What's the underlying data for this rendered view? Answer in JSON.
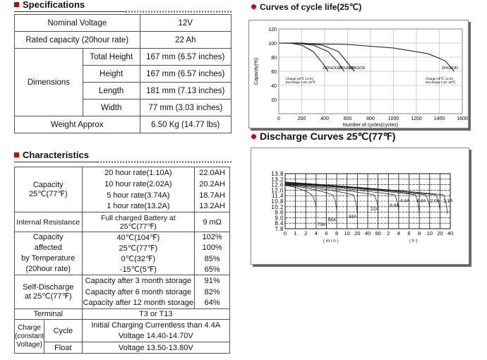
{
  "specs_header": "Specifications",
  "specs": {
    "nominal_voltage_label": "Nominal Voltage",
    "nominal_voltage_value": "12V",
    "rated_capacity_label": "Rated capacity (20hour rate)",
    "rated_capacity_value": "22 Ah",
    "dimensions_label": "Dimensions",
    "dimensions": [
      {
        "label": "Total Height",
        "value": "167 mm (6.57 inches)"
      },
      {
        "label": "Height",
        "value": "167 mm (6.57 inches)"
      },
      {
        "label": "Length",
        "value": "181 mm (7.13 inches)"
      },
      {
        "label": "Width",
        "value": "77 mm (3.03 inches)"
      }
    ],
    "weight_label": "Weight Approx",
    "weight_value": "6.50 Kg (14.77 lbs)"
  },
  "char_header": "Characteristics",
  "characteristics": {
    "capacity_label": [
      "Capacity",
      "25℃(77℉)"
    ],
    "capacity_rows": [
      {
        "rate": "20 hour rate(1.10A)",
        "value": "22.0AH"
      },
      {
        "rate": "10 hour rate(2.02A)",
        "value": "20.2AH"
      },
      {
        "rate": "5 hour rate(3.74A)",
        "value": "18.7AH"
      },
      {
        "rate": "1 hour rate(13.2A)",
        "value": "13.2AH"
      }
    ],
    "internal_resistance_label": "Internal Resistance",
    "internal_resistance_cond": "Full charged Battery at 25℃(77℉)",
    "internal_resistance_value": "9 mΩ",
    "temp_label": [
      "Capacity",
      "affected",
      "by Temperature",
      "(20hour rate)"
    ],
    "temp_rows": [
      {
        "temp": "40℃(104℉)",
        "value": "102%"
      },
      {
        "temp": "25℃(77℉)",
        "value": "100%"
      },
      {
        "temp": "0℃(32℉)",
        "value": "85%"
      },
      {
        "temp": "-15℃(5℉)",
        "value": "65%"
      }
    ],
    "self_discharge_label": [
      "Self-Discharge",
      "at 25℃(77℉)"
    ],
    "self_discharge_rows": [
      {
        "cond": "Capacity after 3 month storage",
        "value": "91%"
      },
      {
        "cond": "Capacity after 6 month storage",
        "value": "82%"
      },
      {
        "cond": "Capacity after 12 month storage",
        "value": "64%"
      }
    ],
    "terminal_label": "Terminal",
    "terminal_value": "T3 or T13",
    "charge_label": [
      "Charge",
      "(constant",
      "Voltage)"
    ],
    "cycle_label": "Cycle",
    "cycle_lines": [
      "Initial Charging Currentless than 4.4A",
      "Voltage 14.40-14.70V"
    ],
    "float_label": "Float",
    "float_value": "Voltage 13.50-13.80V"
  },
  "cycle_header": "Curves of cycle life(25℃)",
  "discharge_header": "Discharge Curves 25℃(77℉)",
  "chart_data": [
    {
      "type": "line",
      "title": "Curves of cycle life(25℃)",
      "xlabel": "Number of cycles(cycles)",
      "ylabel": "Capacity(%)",
      "xlim": [
        0,
        1600
      ],
      "ylim": [
        0,
        120
      ],
      "x_ticks": [
        "0",
        "200",
        "400",
        "600",
        "800",
        "1000",
        "1200",
        "1400",
        "1600"
      ],
      "y_ticks": [
        "20",
        "40",
        "60",
        "80",
        "100",
        "120"
      ],
      "series": [
        {
          "name": "100%DOD",
          "x": [
            0,
            100,
            200,
            300,
            380,
            430
          ],
          "y": [
            100,
            100,
            97,
            88,
            72,
            60
          ]
        },
        {
          "name": "70%DOD",
          "x": [
            0,
            150,
            300,
            430,
            520,
            570
          ],
          "y": [
            100,
            100,
            97,
            88,
            72,
            60
          ]
        },
        {
          "name": "50%DOD",
          "x": [
            0,
            200,
            380,
            520,
            600,
            660
          ],
          "y": [
            100,
            100,
            97,
            88,
            72,
            60
          ]
        },
        {
          "name": "30%DOD",
          "x": [
            0,
            600,
            1000,
            1300,
            1450,
            1530
          ],
          "y": [
            100,
            98,
            93,
            85,
            75,
            60
          ]
        }
      ],
      "notes": [
        "Charge-25℃ 14.5V",
        "Discharge 1.5C 25℃"
      ],
      "grid": true
    },
    {
      "type": "line",
      "title": "Discharge Curves 25℃(77℉)",
      "xlabel": "min / h",
      "x_ticks": [
        "0",
        "1",
        "2",
        "4",
        "6",
        "8",
        "10",
        "20",
        "40",
        "60",
        "2",
        "4",
        "6",
        "8",
        "10",
        "20",
        "40"
      ],
      "y_ticks": [
        "13.8",
        "13.2",
        "12.6",
        "12.0",
        "11.4",
        "10.8",
        "10.2",
        "9.6",
        "9.0",
        "8.4",
        "7.8"
      ],
      "ylim": [
        7.8,
        13.8
      ],
      "series_labels": [
        "79A",
        "66A",
        "44A",
        "22A",
        "8.8A",
        "4.4A",
        "4.4A",
        "2.0A",
        "1.1A"
      ],
      "grid": true
    }
  ]
}
